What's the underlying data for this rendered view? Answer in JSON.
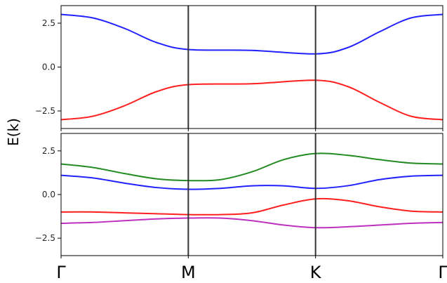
{
  "chart_data": {
    "type": "line",
    "ylabel": "E(k)",
    "x_ticks": [
      "Γ",
      "M",
      "K",
      "Γ"
    ],
    "x_tick_positions": [
      0,
      1,
      2,
      3
    ],
    "xlim": [
      0,
      3
    ],
    "grid": false,
    "legend": "none",
    "colors": {
      "red": "#ff1f1f",
      "blue": "#2222ff",
      "green": "#228b22",
      "magenta": "#bf2fbf",
      "kline": "#333333"
    },
    "panels": [
      {
        "name": "top",
        "ylim": [
          -3.5,
          3.5
        ],
        "yticks": [
          -2.5,
          0.0,
          2.5
        ],
        "ytick_labels": [
          "−2.5",
          "0.0",
          "2.5"
        ],
        "series": [
          {
            "color": "blue",
            "x": [
              0,
              0.25,
              0.5,
              0.75,
              1,
              1.5,
              2,
              2.25,
              2.5,
              2.75,
              3
            ],
            "y": [
              3.0,
              2.8,
              2.2,
              1.4,
              1.0,
              0.95,
              0.75,
              1.1,
              2.0,
              2.8,
              3.0
            ]
          },
          {
            "color": "red",
            "x": [
              0,
              0.25,
              0.5,
              0.75,
              1,
              1.5,
              2,
              2.25,
              2.5,
              2.75,
              3
            ],
            "y": [
              -3.0,
              -2.8,
              -2.2,
              -1.4,
              -1.0,
              -0.95,
              -0.75,
              -1.1,
              -2.0,
              -2.8,
              -3.0
            ]
          }
        ]
      },
      {
        "name": "bottom",
        "ylim": [
          -3.5,
          3.5
        ],
        "yticks": [
          -2.5,
          0.0,
          2.5
        ],
        "ytick_labels": [
          "−2.5",
          "0.0",
          "2.5"
        ],
        "series": [
          {
            "color": "green",
            "x": [
              0,
              0.25,
              0.5,
              0.75,
              1,
              1.25,
              1.5,
              1.75,
              2,
              2.25,
              2.5,
              2.75,
              3
            ],
            "y": [
              1.75,
              1.55,
              1.2,
              0.9,
              0.8,
              0.85,
              1.3,
              2.0,
              2.35,
              2.25,
              2.0,
              1.8,
              1.75
            ]
          },
          {
            "color": "blue",
            "x": [
              0,
              0.25,
              0.5,
              0.75,
              1,
              1.25,
              1.5,
              1.75,
              2,
              2.25,
              2.5,
              2.75,
              3
            ],
            "y": [
              1.1,
              0.95,
              0.65,
              0.4,
              0.3,
              0.35,
              0.5,
              0.5,
              0.35,
              0.5,
              0.85,
              1.05,
              1.1
            ]
          },
          {
            "color": "red",
            "x": [
              0,
              0.25,
              0.5,
              0.75,
              1,
              1.25,
              1.5,
              1.75,
              2,
              2.25,
              2.5,
              2.75,
              3
            ],
            "y": [
              -1.0,
              -1.0,
              -1.05,
              -1.1,
              -1.15,
              -1.15,
              -1.05,
              -0.6,
              -0.25,
              -0.35,
              -0.7,
              -0.95,
              -1.0
            ]
          },
          {
            "color": "magenta",
            "x": [
              0,
              0.25,
              0.5,
              0.75,
              1,
              1.25,
              1.5,
              1.75,
              2,
              2.25,
              2.5,
              2.75,
              3
            ],
            "y": [
              -1.65,
              -1.6,
              -1.5,
              -1.4,
              -1.35,
              -1.35,
              -1.5,
              -1.75,
              -1.9,
              -1.85,
              -1.75,
              -1.65,
              -1.6
            ]
          }
        ]
      }
    ]
  }
}
